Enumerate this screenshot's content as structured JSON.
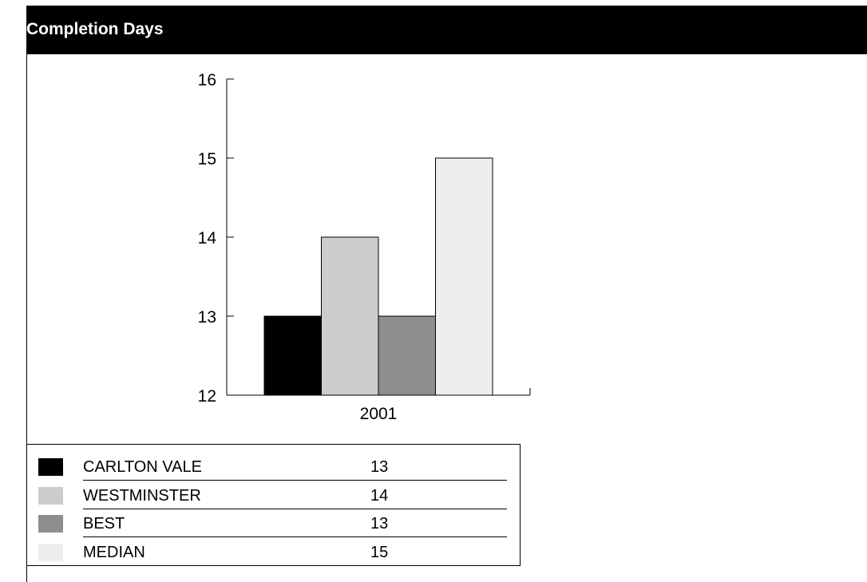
{
  "header": {
    "title": "Completion Days"
  },
  "chart_data": {
    "type": "bar",
    "categories": [
      "2001"
    ],
    "series": [
      {
        "name": "CARLTON VALE",
        "values": [
          13
        ],
        "color": "#000000"
      },
      {
        "name": "WESTMINSTER",
        "values": [
          14
        ],
        "color": "#cccccc"
      },
      {
        "name": "BEST",
        "values": [
          13
        ],
        "color": "#8e8e8e"
      },
      {
        "name": "MEDIAN",
        "values": [
          15
        ],
        "color": "#eeeeee"
      }
    ],
    "title": "Completion Days",
    "ylim": [
      12,
      16
    ],
    "yticks": [
      "12",
      "13",
      "14",
      "15",
      "16"
    ],
    "grid": false,
    "legend": "bottom"
  }
}
